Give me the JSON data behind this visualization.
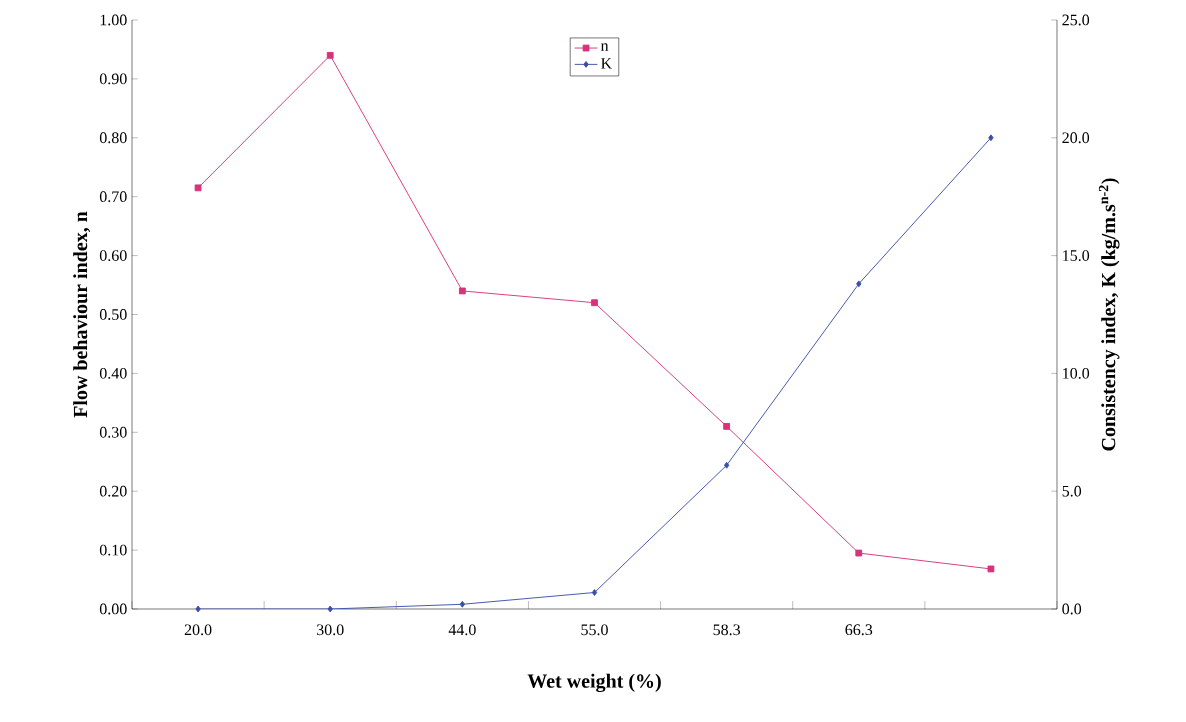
{
  "chart_data": {
    "type": "line",
    "xlabel": "Wet weight (%)",
    "ylabel": "Flow behaviour index, n",
    "y2label": "Consistency index, K (kg/m.s$^{n-2}$)",
    "categories": [
      "20.0",
      "30.0",
      "44.0",
      "55.0",
      "58.3",
      "66.3",
      null
    ],
    "series": [
      {
        "name": "n",
        "color": "#d6337a",
        "marker": "square",
        "values": [
          0.715,
          0.94,
          0.54,
          0.52,
          0.31,
          0.095,
          0.068
        ]
      },
      {
        "name": "K",
        "color": "#3a4fa8",
        "marker": "diamond",
        "axis": "y2",
        "values": [
          0.0,
          0.0,
          0.2,
          0.7,
          6.1,
          13.8,
          20.0
        ]
      }
    ],
    "ylim": [
      0,
      1
    ],
    "yticks": [
      {
        "value": 0,
        "label": "0.00"
      },
      {
        "value": 0.1,
        "label": "0.10"
      },
      {
        "value": 0.2,
        "label": "0.20"
      },
      {
        "value": 0.3,
        "label": "0.30"
      },
      {
        "value": 0.4,
        "label": "0.40"
      },
      {
        "value": 0.5,
        "label": "0.50"
      },
      {
        "value": 0.6,
        "label": "0.60"
      },
      {
        "value": 0.7,
        "label": "0.70"
      },
      {
        "value": 0.8,
        "label": "0.80"
      },
      {
        "value": 0.9,
        "label": "0.90"
      },
      {
        "value": 1,
        "label": "1.00"
      }
    ],
    "y2lim": [
      0,
      25
    ],
    "y2ticks": [
      {
        "value": 0,
        "label": "0.0"
      },
      {
        "value": 5,
        "label": "5.0"
      },
      {
        "value": 10,
        "label": "10.0"
      },
      {
        "value": 15,
        "label": "15.0"
      },
      {
        "value": 20,
        "label": "20.0"
      },
      {
        "value": 25,
        "label": "25.0"
      }
    ],
    "legend": "top",
    "grid": false,
    "line_style": "solid"
  }
}
